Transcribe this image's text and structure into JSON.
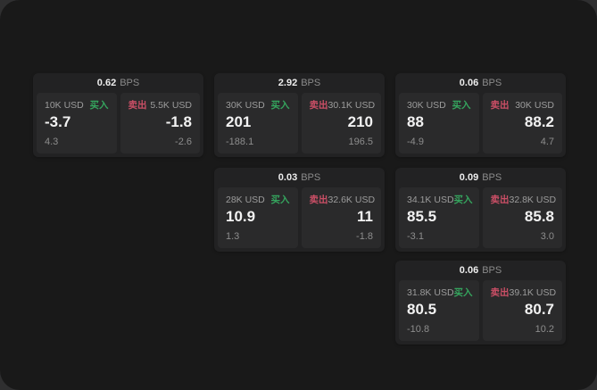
{
  "labels": {
    "bps_unit": "BPS",
    "buy": "买入",
    "sell": "卖出"
  },
  "colors": {
    "outer_background": "#2f2f30",
    "window_background": "#191919",
    "card_background": "#222223",
    "panel_background": "#2a2a2b",
    "buy_green": "#35a55e",
    "sell_red": "#cb4f66",
    "text_primary": "#f2f2f2",
    "text_muted": "#9c9c9c"
  },
  "cards": [
    {
      "bps": "0.62",
      "buy": {
        "amount": "10K USD",
        "price": "-3.7",
        "delta": "4.3"
      },
      "sell": {
        "amount": "5.5K USD",
        "price": "-1.8",
        "delta": "-2.6"
      }
    },
    {
      "bps": "2.92",
      "buy": {
        "amount": "30K USD",
        "price": "201",
        "delta": "-188.1"
      },
      "sell": {
        "amount": "30.1K USD",
        "price": "210",
        "delta": "196.5"
      }
    },
    {
      "bps": "0.06",
      "buy": {
        "amount": "30K USD",
        "price": "88",
        "delta": "-4.9"
      },
      "sell": {
        "amount": "30K USD",
        "price": "88.2",
        "delta": "4.7"
      }
    },
    {
      "bps": "0.03",
      "buy": {
        "amount": "28K USD",
        "price": "10.9",
        "delta": "1.3"
      },
      "sell": {
        "amount": "32.6K USD",
        "price": "11",
        "delta": "-1.8"
      }
    },
    {
      "bps": "0.09",
      "buy": {
        "amount": "34.1K USD",
        "price": "85.5",
        "delta": "-3.1"
      },
      "sell": {
        "amount": "32.8K USD",
        "price": "85.8",
        "delta": "3.0"
      }
    },
    {
      "bps": "0.06",
      "buy": {
        "amount": "31.8K USD",
        "price": "80.5",
        "delta": "-10.8"
      },
      "sell": {
        "amount": "39.1K USD",
        "price": "80.7",
        "delta": "10.2"
      }
    }
  ]
}
